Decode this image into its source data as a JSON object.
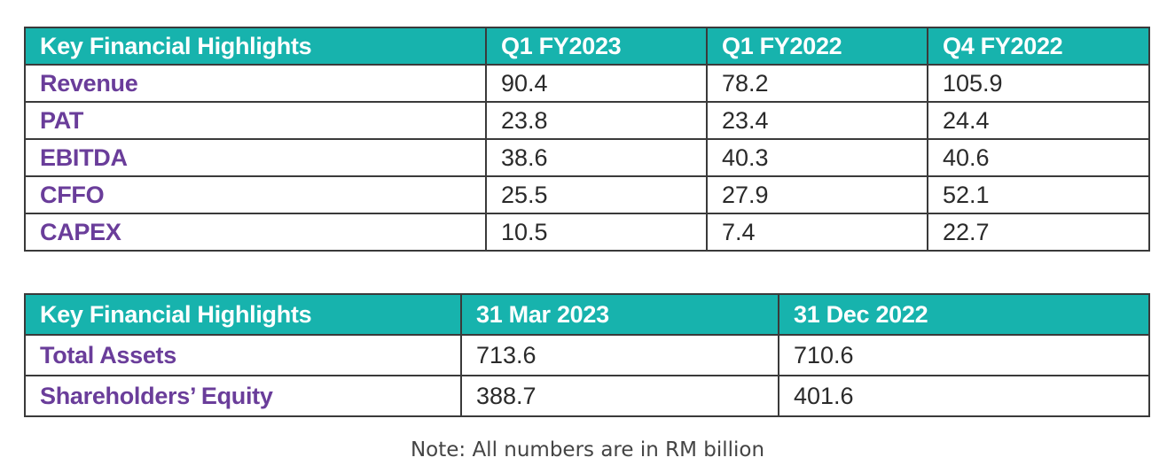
{
  "table1": {
    "headers": [
      "Key Financial Highlights",
      "Q1 FY2023",
      "Q1 FY2022",
      "Q4 FY2022"
    ],
    "rows": [
      {
        "label": "Revenue",
        "values": [
          "90.4",
          "78.2",
          "105.9"
        ]
      },
      {
        "label": "PAT",
        "values": [
          "23.8",
          "23.4",
          "24.4"
        ]
      },
      {
        "label": "EBITDA",
        "values": [
          "38.6",
          "40.3",
          "40.6"
        ]
      },
      {
        "label": "CFFO",
        "values": [
          "25.5",
          "27.9",
          "52.1"
        ]
      },
      {
        "label": "CAPEX",
        "values": [
          "10.5",
          "7.4",
          "22.7"
        ]
      }
    ]
  },
  "table2": {
    "headers": [
      "Key Financial Highlights",
      "31 Mar 2023",
      "31 Dec 2022"
    ],
    "rows": [
      {
        "label": "Total Assets",
        "values": [
          "713.6",
          "710.6"
        ]
      },
      {
        "label": "Shareholders’ Equity",
        "values": [
          "388.7",
          "401.6"
        ]
      }
    ]
  },
  "note": "Note: All numbers are in RM billion",
  "colors": {
    "header_bg": "#17b3ad",
    "header_text": "#ffffff",
    "label_text": "#6a3d9a",
    "value_text": "#2a2a2a",
    "border": "#3a3a3a"
  }
}
